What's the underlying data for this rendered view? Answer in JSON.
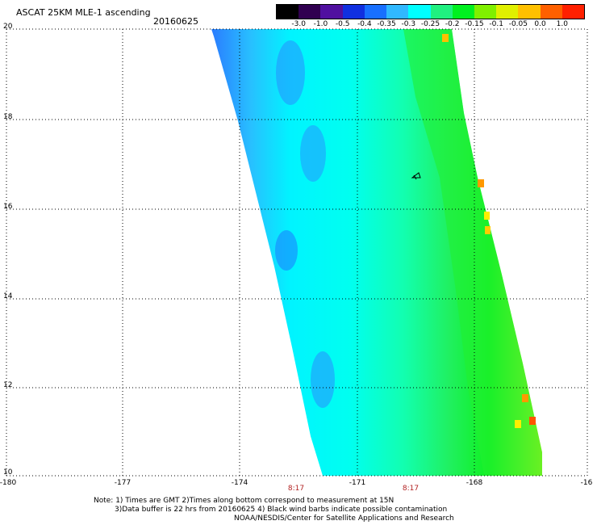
{
  "header": {
    "title": "ASCAT 25KM MLE-1 ascending",
    "date": "20160625"
  },
  "colorbar": {
    "labels": [
      "-3.0",
      "-1.0",
      "-0.5",
      "-0.4",
      "-0.35",
      "-0.3",
      "-0.25",
      "-0.2",
      "-0.15",
      "-0.1",
      "-0.05",
      "0.0",
      "1.0"
    ],
    "colors": [
      "#000000",
      "#300050",
      "#5010a0",
      "#1030e0",
      "#1870ff",
      "#30b8ff",
      "#00ffff",
      "#20f080",
      "#00f020",
      "#80f000",
      "#e0f000",
      "#ffc000",
      "#ff6000",
      "#ff2000"
    ]
  },
  "axes": {
    "lat_labels": [
      "20",
      "18",
      "16",
      "14",
      "12",
      "10"
    ],
    "lon_labels": [
      "-180",
      "-177",
      "-174",
      "-171",
      "-168",
      "-16"
    ]
  },
  "time_labels": [
    "8:17",
    "8:17"
  ],
  "contamination_marker": "wind-barb",
  "notes": {
    "line1": "Note: 1) Times are GMT 2)Times along bottom correspond to measurement at 15N",
    "line2": "3)Data buffer is 22 hrs from 20160625 4) Black wind barbs indicate possible contamination",
    "line3": "NOAA/NESDIS/Center for Satellite Applications and Research"
  }
}
